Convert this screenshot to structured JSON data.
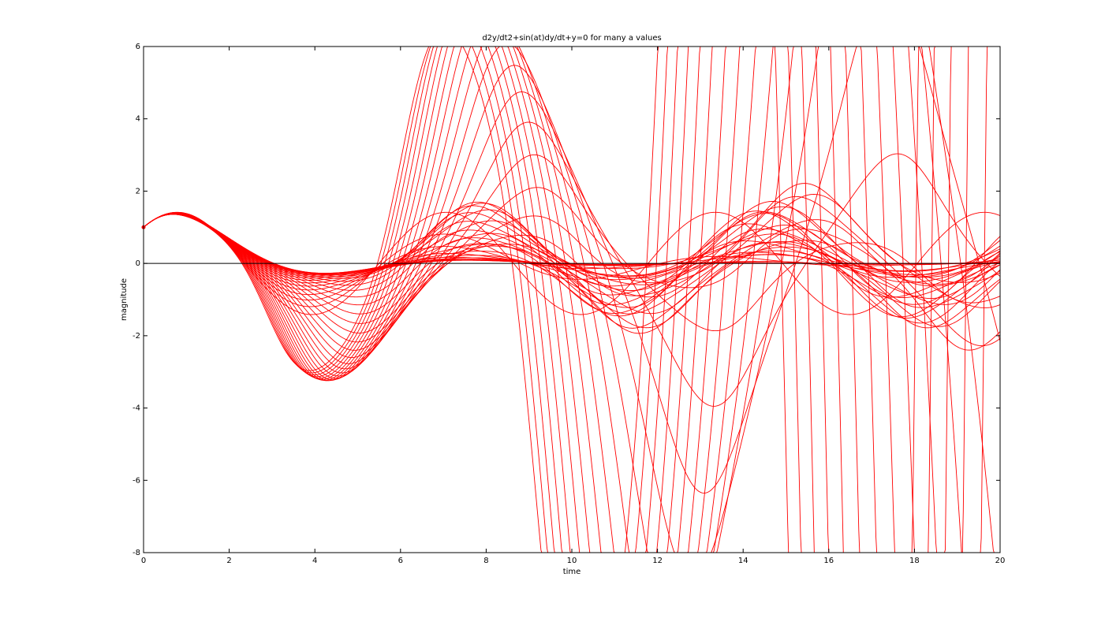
{
  "chart_data": {
    "type": "line",
    "title": "d2y/dt2+sin(at)dy/dt+y=0 for many a values",
    "xlabel": "time",
    "ylabel": "magnitude",
    "xlim": [
      0,
      20
    ],
    "ylim": [
      -8,
      6
    ],
    "xticks": [
      0,
      2,
      4,
      6,
      8,
      10,
      12,
      14,
      16,
      18,
      20
    ],
    "yticks": [
      -8,
      -6,
      -4,
      -2,
      0,
      2,
      4,
      6
    ],
    "grid": false,
    "legend": "none",
    "initial_condition": {
      "t": 0,
      "y": 1
    },
    "series_color": "#ff0000",
    "reference_line": {
      "y": 0,
      "color": "#000000"
    },
    "family": {
      "count": 45,
      "a_range": [
        0,
        2
      ],
      "t_end": 20,
      "y0": 1,
      "dy0": 1
    }
  }
}
